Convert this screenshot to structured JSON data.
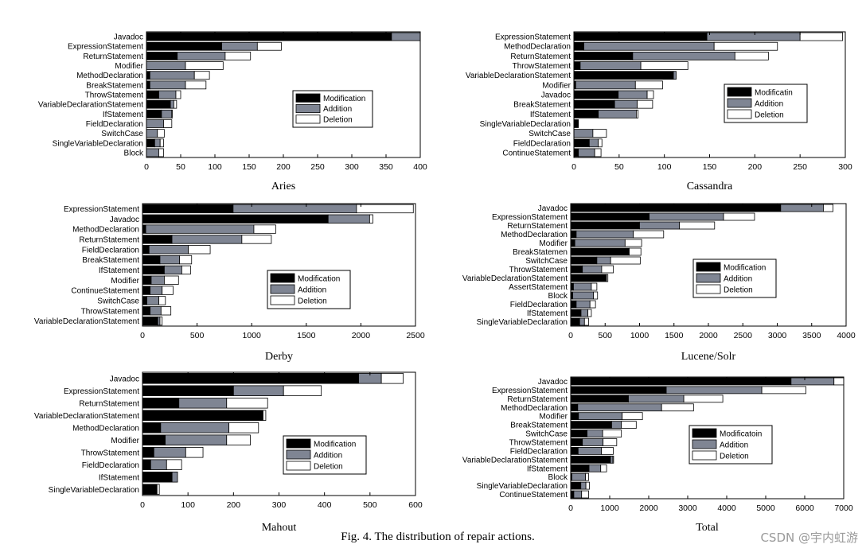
{
  "figure": {
    "caption": "Fig. 4.  The distribution of repair actions.",
    "watermark": "CSDN @宇内虹游"
  },
  "colors": {
    "modification": "#000000",
    "addition": "#7f8593",
    "deletion": "#ffffff",
    "axis": "#000000"
  },
  "chart_data": [
    {
      "type": "bar",
      "orientation": "horizontal",
      "stacked": true,
      "title": "Aries",
      "xlim": [
        0,
        400
      ],
      "xticks": [
        0,
        50,
        100,
        150,
        200,
        250,
        300,
        350,
        400
      ],
      "legend": {
        "position": "center-right",
        "labels": [
          "Modification",
          "Addition",
          "Deletion"
        ]
      },
      "categories": [
        "Javadoc",
        "ExpressionStatement",
        "ReturnStatement",
        "Modifier",
        "MethodDeclaration",
        "BreakStatement",
        "ThrowStatement",
        "VariableDeclarationStatement",
        "IfStatement",
        "FieldDeclaration",
        "SwitchCase",
        "SingleVariableDeclaration",
        "Block"
      ],
      "series": [
        {
          "name": "Modification",
          "values": [
            358,
            110,
            45,
            0,
            5,
            5,
            18,
            35,
            22,
            0,
            0,
            12,
            0
          ]
        },
        {
          "name": "Addition",
          "values": [
            42,
            52,
            70,
            57,
            65,
            52,
            25,
            5,
            15,
            25,
            16,
            8,
            18
          ]
        },
        {
          "name": "Deletion",
          "values": [
            0,
            35,
            37,
            55,
            22,
            30,
            7,
            4,
            1,
            12,
            10,
            5,
            7
          ]
        }
      ]
    },
    {
      "type": "bar",
      "orientation": "horizontal",
      "stacked": true,
      "title": "Cassandra",
      "xlim": [
        0,
        300
      ],
      "xticks": [
        0,
        50,
        100,
        150,
        200,
        250,
        300
      ],
      "legend": {
        "position": "center-right",
        "labels": [
          "Modificatin",
          "Addition",
          "Deletion"
        ]
      },
      "categories": [
        "ExpressionStatement",
        "MethodDeclaration",
        "ReturnStatement",
        "ThrowStatement",
        "VariableDeclarationStatement",
        "Modifier",
        "Javadoc",
        "BreakStatement",
        "IfStatement",
        "SingleVariableDeclaration",
        "SwitchCase",
        "FieldDeclaration",
        "ContinueStatement"
      ],
      "series": [
        {
          "name": "Modification",
          "values": [
            147,
            11,
            65,
            7,
            110,
            2,
            49,
            45,
            27,
            5,
            0,
            17,
            5
          ]
        },
        {
          "name": "Addition",
          "values": [
            103,
            144,
            113,
            67,
            3,
            66,
            32,
            25,
            42,
            0,
            21,
            10,
            18
          ]
        },
        {
          "name": "Deletion",
          "values": [
            47,
            70,
            37,
            52,
            0,
            30,
            7,
            17,
            2,
            0,
            15,
            4,
            7
          ]
        }
      ]
    },
    {
      "type": "bar",
      "orientation": "horizontal",
      "stacked": true,
      "title": "Derby",
      "xlim": [
        0,
        2500
      ],
      "xticks": [
        0,
        500,
        1000,
        1500,
        2000,
        2500
      ],
      "legend": {
        "position": "center-right",
        "labels": [
          "Modification",
          "Addition",
          "Deletion"
        ]
      },
      "categories": [
        "ExpressionStatement",
        "Javadoc",
        "MethodDeclaration",
        "ReturnStatement",
        "FieldDeclaration",
        "BreakStatement",
        "IfStatement",
        "Modifier",
        "ContinueStatement",
        "SwitchCase",
        "ThrowStatement",
        "VariableDeclarationStatement"
      ],
      "series": [
        {
          "name": "Modification",
          "values": [
            830,
            1700,
            30,
            270,
            60,
            160,
            200,
            80,
            70,
            40,
            70,
            140
          ]
        },
        {
          "name": "Addition",
          "values": [
            1130,
            380,
            990,
            640,
            360,
            180,
            160,
            120,
            110,
            110,
            100,
            20
          ]
        },
        {
          "name": "Deletion",
          "values": [
            520,
            30,
            200,
            270,
            200,
            110,
            80,
            130,
            100,
            60,
            90,
            20
          ]
        }
      ]
    },
    {
      "type": "bar",
      "orientation": "horizontal",
      "stacked": true,
      "title": "Lucene/Solr",
      "xlim": [
        0,
        4000
      ],
      "xticks": [
        0,
        500,
        1000,
        1500,
        2000,
        2500,
        3000,
        3500,
        4000
      ],
      "legend": {
        "position": "center-right",
        "labels": [
          "Modification",
          "Addition",
          "Deletion"
        ]
      },
      "categories": [
        "Javadoc",
        "ExpressionStatement",
        "ReturnStatement",
        "MethodDeclaration",
        "Modifier",
        "BreakStatemen",
        "SwitchCase",
        "ThrowStatement",
        "VariableDeclarationStatement",
        "AssertStatement",
        "Block",
        "FieldDeclaration",
        "IfStatement",
        "SingleVariableDeclaration"
      ],
      "series": [
        {
          "name": "Modification",
          "values": [
            3050,
            1140,
            1000,
            80,
            60,
            850,
            380,
            170,
            520,
            40,
            30,
            80,
            150,
            130
          ]
        },
        {
          "name": "Addition",
          "values": [
            620,
            1080,
            580,
            830,
            730,
            0,
            200,
            280,
            0,
            260,
            300,
            200,
            100,
            70
          ]
        },
        {
          "name": "Deletion",
          "values": [
            140,
            450,
            510,
            440,
            240,
            170,
            430,
            170,
            20,
            80,
            60,
            80,
            50,
            60
          ]
        }
      ]
    },
    {
      "type": "bar",
      "orientation": "horizontal",
      "stacked": true,
      "title": "Mahout",
      "xlim": [
        0,
        600
      ],
      "xticks": [
        0,
        100,
        200,
        300,
        400,
        500,
        600
      ],
      "legend": {
        "position": "center-right",
        "labels": [
          "Modification",
          "Addition",
          "Deletion"
        ]
      },
      "categories": [
        "Javadoc",
        "ExpressionStatement",
        "ReturnStatement",
        "VariableDeclarationStatement",
        "MethodDeclaration",
        "Modifier",
        "ThrowStatement",
        "FieldDeclaration",
        "IfStatement",
        "SingleVariableDeclaration"
      ],
      "series": [
        {
          "name": "Modification",
          "values": [
            475,
            200,
            80,
            265,
            40,
            50,
            25,
            18,
            65,
            32
          ]
        },
        {
          "name": "Addition",
          "values": [
            50,
            110,
            105,
            0,
            150,
            135,
            70,
            35,
            12,
            0
          ]
        },
        {
          "name": "Deletion",
          "values": [
            48,
            83,
            90,
            6,
            65,
            52,
            38,
            33,
            0,
            5
          ]
        }
      ]
    },
    {
      "type": "bar",
      "orientation": "horizontal",
      "stacked": true,
      "title": "Total",
      "xlim": [
        0,
        7000
      ],
      "xticks": [
        0,
        1000,
        2000,
        3000,
        4000,
        5000,
        6000,
        7000
      ],
      "legend": {
        "position": "center-right",
        "labels": [
          "Modificatoin",
          "Addition",
          "Deletion"
        ]
      },
      "categories": [
        "Javadoc",
        "ExpressionStatement",
        "ReturnStatement",
        "MethodDeclaration",
        "Modifier",
        "BreakStatement",
        "SwitchCase",
        "ThrowStatement",
        "FieldDeclaration",
        "VariableDeclarationStatement",
        "IfStatement",
        "Block",
        "SingleVariableDeclaration",
        "ContinueStatement"
      ],
      "series": [
        {
          "name": "Modification",
          "values": [
            5650,
            2450,
            1480,
            180,
            200,
            1050,
            420,
            300,
            190,
            1020,
            470,
            30,
            260,
            80
          ]
        },
        {
          "name": "Addition",
          "values": [
            1100,
            2450,
            1420,
            2150,
            1120,
            250,
            400,
            530,
            600,
            60,
            300,
            350,
            130,
            200
          ]
        },
        {
          "name": "Deletion",
          "values": [
            250,
            1130,
            1000,
            820,
            520,
            380,
            480,
            350,
            300,
            20,
            150,
            80,
            90,
            180
          ]
        }
      ]
    }
  ]
}
